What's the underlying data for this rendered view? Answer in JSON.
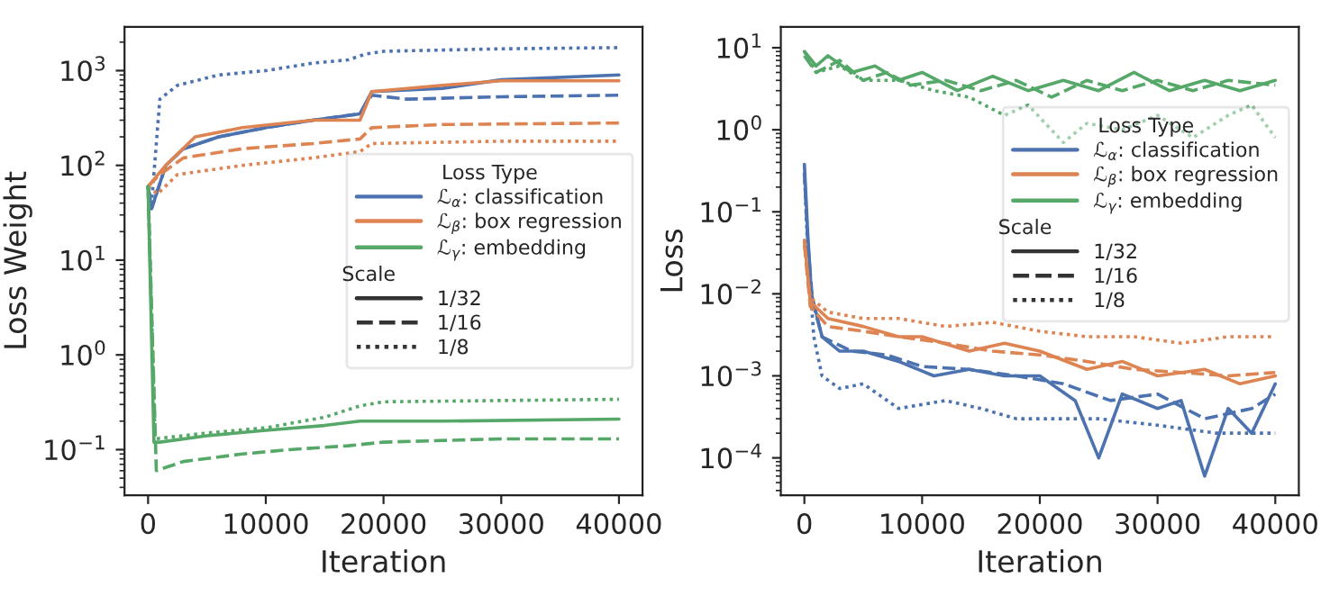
{
  "chart_data": [
    {
      "type": "line",
      "xlabel": "Iteration",
      "ylabel": "Loss Weight",
      "log": "y",
      "xlim": [
        -2000,
        42000
      ],
      "xticks": [
        0,
        10000,
        20000,
        30000,
        40000
      ],
      "ylim": [
        0.033,
        2900
      ],
      "yticks": [
        {
          "value": 0.1,
          "label": "10$^{−1}$"
        },
        {
          "value": 1,
          "label": "10$^{0}$"
        },
        {
          "value": 10,
          "label": "10$^{1}$"
        },
        {
          "value": 100,
          "label": "10$^{2}$"
        },
        {
          "value": 1000,
          "label": "10$^{3}$"
        }
      ],
      "grid": false,
      "legend": "center right",
      "legend_title": "Loss Type",
      "annotations": [
        "Scale",
        "1/32",
        "1/16",
        "1/8"
      ],
      "series": [
        {
          "name": "ℒ$_{α}$: classification",
          "color": "#4c72b0",
          "line_style": "solid",
          "x": [
            0,
            300,
            1500,
            3000,
            6000,
            10000,
            14000,
            18000,
            19000,
            25000,
            30000,
            40000
          ],
          "values": [
            60,
            35,
            100,
            150,
            200,
            250,
            300,
            350,
            600,
            650,
            800,
            900
          ]
        },
        {
          "color": "#4c72b0",
          "line_style": "dashed",
          "x": [
            0,
            300,
            1500,
            3000,
            6000,
            10000,
            14000,
            18000,
            19000,
            22000,
            30000,
            40000
          ],
          "values": [
            60,
            35,
            100,
            150,
            200,
            250,
            300,
            350,
            550,
            500,
            530,
            550
          ]
        },
        {
          "color": "#4c72b0",
          "line_style": "dotted",
          "x": [
            0,
            300,
            1000,
            2500,
            6000,
            10000,
            14000,
            17000,
            18500,
            20000,
            30000,
            40000
          ],
          "values": [
            60,
            40,
            500,
            700,
            900,
            1000,
            1200,
            1300,
            1500,
            1600,
            1700,
            1750
          ]
        },
        {
          "name": "ℒ$_{β}$: box regression",
          "color": "#dd8452",
          "line_style": "solid",
          "x": [
            0,
            1500,
            4000,
            8000,
            14000,
            18000,
            19000,
            25000,
            30000,
            40000
          ],
          "values": [
            60,
            100,
            200,
            250,
            300,
            300,
            600,
            700,
            780,
            780
          ]
        },
        {
          "color": "#dd8452",
          "line_style": "dashed",
          "x": [
            0,
            1000,
            3000,
            8000,
            14000,
            18000,
            19000,
            25000,
            40000
          ],
          "values": [
            60,
            80,
            120,
            150,
            170,
            190,
            250,
            270,
            280
          ]
        },
        {
          "color": "#dd8452",
          "line_style": "dotted",
          "x": [
            0,
            800,
            2500,
            8000,
            14000,
            18000,
            19000,
            30000,
            40000
          ],
          "values": [
            60,
            50,
            80,
            100,
            120,
            140,
            170,
            180,
            180
          ]
        },
        {
          "name": "ℒ$_{γ}$: embedding",
          "color": "#55a868",
          "line_style": "solid",
          "x": [
            0,
            500,
            1000,
            5000,
            10000,
            15000,
            18000,
            25000,
            40000
          ],
          "values": [
            60,
            0.12,
            0.12,
            0.14,
            0.16,
            0.18,
            0.2,
            0.2,
            0.21
          ]
        },
        {
          "color": "#55a868",
          "line_style": "dashed",
          "x": [
            0,
            700,
            3000,
            8000,
            12000,
            17000,
            20000,
            30000,
            40000
          ],
          "values": [
            60,
            0.06,
            0.075,
            0.09,
            0.1,
            0.11,
            0.12,
            0.13,
            0.13
          ]
        },
        {
          "color": "#55a868",
          "line_style": "dotted",
          "x": [
            0,
            600,
            5000,
            10000,
            15000,
            18000,
            20000,
            30000,
            40000
          ],
          "values": [
            60,
            0.13,
            0.15,
            0.17,
            0.22,
            0.29,
            0.32,
            0.33,
            0.34
          ]
        }
      ]
    },
    {
      "type": "line",
      "xlabel": "Iteration",
      "ylabel": "Loss",
      "log": "y",
      "xlim": [
        -2000,
        42000
      ],
      "xticks": [
        0,
        10000,
        20000,
        30000,
        40000
      ],
      "ylim": [
        3.5e-05,
        18
      ],
      "yticks": [
        {
          "value": 0.0001,
          "label": "10$^{−4}$"
        },
        {
          "value": 0.001,
          "label": "10$^{−3}$"
        },
        {
          "value": 0.01,
          "label": "10$^{−2}$"
        },
        {
          "value": 0.1,
          "label": "10$^{−1}$"
        },
        {
          "value": 1,
          "label": "10$^{0}$"
        },
        {
          "value": 10,
          "label": "10$^{1}$"
        }
      ],
      "grid": false,
      "legend": "center right",
      "legend_title": "Loss Type",
      "annotations": [
        "Scale",
        "1/32",
        "1/16",
        "1/8"
      ],
      "series": [
        {
          "name": "ℒ$_{α}$: classification",
          "color": "#4c72b0",
          "line_style": "solid",
          "x": [
            0,
            300,
            600,
            1500,
            3000,
            5000,
            8000,
            11000,
            14000,
            17000,
            20000,
            23000,
            25000,
            27000,
            30000,
            32000,
            34000,
            36000,
            38000,
            40000
          ],
          "values": [
            0.38,
            0.05,
            0.01,
            0.003,
            0.002,
            0.002,
            0.0015,
            0.001,
            0.0012,
            0.001,
            0.001,
            0.0005,
            0.0001,
            0.0006,
            0.0004,
            0.0005,
            6e-05,
            0.0004,
            0.0002,
            0.0008
          ]
        },
        {
          "color": "#4c72b0",
          "line_style": "dashed",
          "x": [
            0,
            300,
            700,
            1500,
            4000,
            7000,
            10000,
            14000,
            18000,
            22000,
            26000,
            30000,
            34000,
            38000,
            40000
          ],
          "values": [
            0.3,
            0.04,
            0.008,
            0.003,
            0.002,
            0.0018,
            0.0013,
            0.0012,
            0.001,
            0.0008,
            0.0005,
            0.0006,
            0.0003,
            0.0004,
            0.0006
          ]
        },
        {
          "color": "#4c72b0",
          "line_style": "dotted",
          "x": [
            0,
            300,
            800,
            1500,
            3000,
            5000,
            8000,
            12000,
            15000,
            18000,
            20000,
            25000,
            30000,
            35000,
            40000
          ],
          "values": [
            0.3,
            0.03,
            0.003,
            0.001,
            0.0007,
            0.0008,
            0.0004,
            0.0005,
            0.0004,
            0.0003,
            0.0003,
            0.0003,
            0.00025,
            0.0002,
            0.0002
          ]
        },
        {
          "name": "ℒ$_{β}$: box regression",
          "color": "#dd8452",
          "line_style": "solid",
          "x": [
            0,
            500,
            2000,
            5000,
            8000,
            10000,
            14000,
            17000,
            20000,
            24000,
            27000,
            30000,
            34000,
            37000,
            40000
          ],
          "values": [
            0.045,
            0.008,
            0.005,
            0.004,
            0.003,
            0.003,
            0.002,
            0.0025,
            0.002,
            0.0012,
            0.0015,
            0.001,
            0.0012,
            0.0008,
            0.001
          ]
        },
        {
          "color": "#dd8452",
          "line_style": "dashed",
          "x": [
            0,
            500,
            2000,
            5000,
            8000,
            12000,
            16000,
            20000,
            24000,
            28000,
            32000,
            36000,
            40000
          ],
          "values": [
            0.04,
            0.007,
            0.004,
            0.0035,
            0.003,
            0.0025,
            0.002,
            0.0018,
            0.0015,
            0.0012,
            0.0011,
            0.001,
            0.0011
          ]
        },
        {
          "color": "#dd8452",
          "line_style": "dotted",
          "x": [
            0,
            500,
            2000,
            5000,
            8000,
            12000,
            16000,
            20000,
            24000,
            28000,
            32000,
            36000,
            40000
          ],
          "values": [
            0.045,
            0.009,
            0.006,
            0.005,
            0.005,
            0.004,
            0.0045,
            0.0035,
            0.003,
            0.003,
            0.0025,
            0.003,
            0.003
          ]
        },
        {
          "name": "ℒ$_{γ}$: embedding",
          "color": "#55a868",
          "line_style": "solid",
          "x": [
            0,
            1000,
            2000,
            4000,
            6000,
            8000,
            10000,
            13000,
            16000,
            19000,
            22000,
            25000,
            28000,
            31000,
            34000,
            37000,
            40000
          ],
          "values": [
            9,
            6,
            8,
            5,
            6,
            4,
            5,
            3,
            4.5,
            3,
            4,
            3,
            5,
            3,
            4,
            3,
            4
          ]
        },
        {
          "color": "#55a868",
          "line_style": "dashed",
          "x": [
            0,
            1000,
            3000,
            5000,
            7000,
            9000,
            12000,
            15000,
            18000,
            21000,
            24000,
            27000,
            30000,
            33000,
            36000,
            40000
          ],
          "values": [
            8,
            5,
            7,
            4,
            5,
            3.5,
            4,
            3,
            4,
            2.5,
            4,
            3,
            4,
            3,
            4,
            3.5
          ]
        },
        {
          "color": "#55a868",
          "line_style": "dotted",
          "x": [
            0,
            1000,
            3000,
            5000,
            8000,
            11000,
            14000,
            17000,
            19000,
            22000,
            24000,
            27000,
            30000,
            33000,
            36000,
            38000,
            40000
          ],
          "values": [
            9,
            5,
            6,
            4,
            4,
            3,
            2.5,
            1.5,
            2,
            0.7,
            1.2,
            1,
            1.5,
            0.8,
            1.5,
            2,
            0.8
          ]
        }
      ]
    }
  ]
}
